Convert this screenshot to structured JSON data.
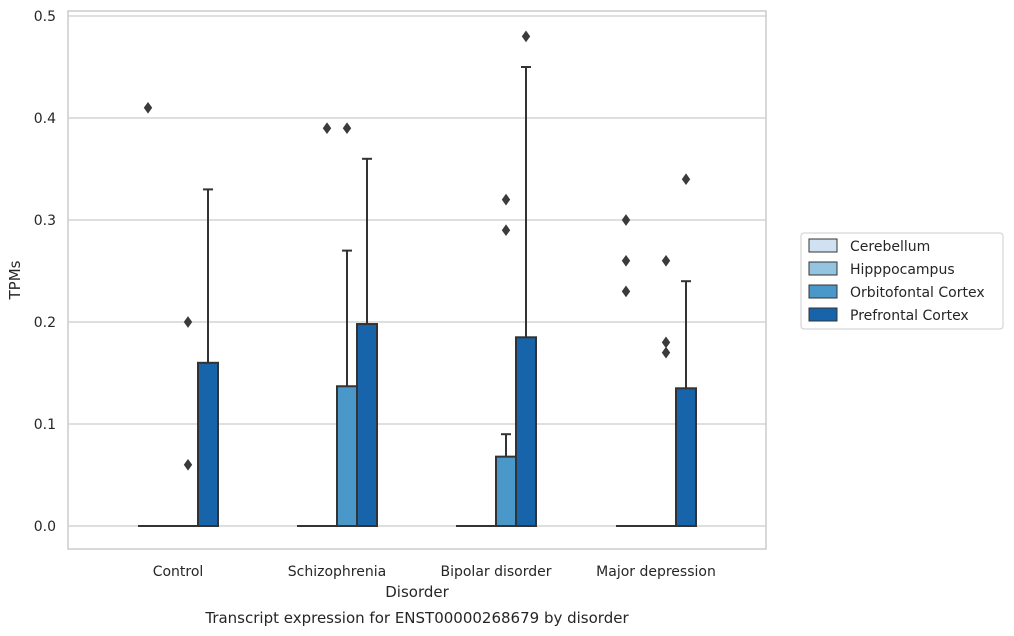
{
  "chart_data": {
    "type": "box",
    "title": "",
    "caption": "Transcript expression for ENST00000268679 by disorder",
    "xlabel": "Disorder",
    "ylabel": "TPMs",
    "ylim": [
      -0.023,
      0.505
    ],
    "yticks": [
      0.0,
      0.1,
      0.2,
      0.3,
      0.4,
      0.5
    ],
    "ytick_labels": [
      "0.0",
      "0.1",
      "0.2",
      "0.3",
      "0.4",
      "0.5"
    ],
    "grid": "horizontal",
    "legend_position": "right",
    "categories": [
      "Control",
      "Schizophrenia",
      "Bipolar disorder",
      "Major depression"
    ],
    "series": [
      {
        "name": "Cerebellum",
        "color": "#d0e1f2",
        "boxes": [
          {
            "q1": 0,
            "median": 0,
            "q3": 0,
            "whisker_low": 0,
            "whisker_high": 0,
            "outliers": [
              0.41
            ]
          },
          {
            "q1": 0,
            "median": 0,
            "q3": 0,
            "whisker_low": 0,
            "whisker_high": 0,
            "outliers": []
          },
          {
            "q1": 0,
            "median": 0,
            "q3": 0,
            "whisker_low": 0,
            "whisker_high": 0,
            "outliers": []
          },
          {
            "q1": 0,
            "median": 0,
            "q3": 0,
            "whisker_low": 0,
            "whisker_high": 0,
            "outliers": [
              0.3,
              0.26,
              0.23
            ]
          }
        ]
      },
      {
        "name": "Hipppocampus",
        "color": "#94c4df",
        "boxes": [
          {
            "q1": 0,
            "median": 0,
            "q3": 0,
            "whisker_low": 0,
            "whisker_high": 0,
            "outliers": []
          },
          {
            "q1": 0,
            "median": 0,
            "q3": 0,
            "whisker_low": 0,
            "whisker_high": 0,
            "outliers": [
              0.39
            ]
          },
          {
            "q1": 0,
            "median": 0,
            "q3": 0,
            "whisker_low": 0,
            "whisker_high": 0,
            "outliers": []
          },
          {
            "q1": 0,
            "median": 0,
            "q3": 0,
            "whisker_low": 0,
            "whisker_high": 0,
            "outliers": []
          }
        ]
      },
      {
        "name": "Orbitofontal Cortex",
        "color": "#4a98c9",
        "boxes": [
          {
            "q1": 0,
            "median": 0,
            "q3": 0,
            "whisker_low": 0,
            "whisker_high": 0,
            "outliers": [
              0.2,
              0.06
            ]
          },
          {
            "q1": 0,
            "median": 0,
            "q3": 0.137,
            "whisker_low": 0,
            "whisker_high": 0.27,
            "outliers": [
              0.39
            ]
          },
          {
            "q1": 0,
            "median": 0,
            "q3": 0.068,
            "whisker_low": 0,
            "whisker_high": 0.09,
            "outliers": [
              0.32,
              0.29
            ]
          },
          {
            "q1": 0,
            "median": 0,
            "q3": 0,
            "whisker_low": 0,
            "whisker_high": 0,
            "outliers": [
              0.26,
              0.18,
              0.17
            ]
          }
        ]
      },
      {
        "name": "Prefrontal Cortex",
        "color": "#1764ab",
        "boxes": [
          {
            "q1": 0,
            "median": 0,
            "q3": 0.16,
            "whisker_low": 0,
            "whisker_high": 0.33,
            "outliers": []
          },
          {
            "q1": 0,
            "median": 0,
            "q3": 0.198,
            "whisker_low": 0,
            "whisker_high": 0.36,
            "outliers": []
          },
          {
            "q1": 0,
            "median": 0,
            "q3": 0.185,
            "whisker_low": 0,
            "whisker_high": 0.45,
            "outliers": [
              0.48
            ]
          },
          {
            "q1": 0,
            "median": 0,
            "q3": 0.135,
            "whisker_low": 0,
            "whisker_high": 0.24,
            "outliers": [
              0.34
            ]
          }
        ]
      }
    ]
  }
}
